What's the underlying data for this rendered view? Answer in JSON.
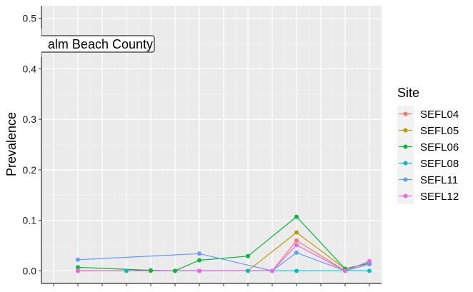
{
  "chart_data": {
    "type": "line",
    "ylabel": "Prevalence",
    "xlabel": "",
    "ylim": [
      -0.025,
      0.525
    ],
    "xlim": [
      0.5,
      14.5
    ],
    "y_ticks": [
      0.0,
      0.1,
      0.2,
      0.3,
      0.4,
      0.5
    ],
    "y_tick_labels": [
      "0.0",
      "0.1",
      "0.2",
      "0.3",
      "0.4",
      "0.5"
    ],
    "x_ticks": [
      1,
      2,
      3,
      4,
      5,
      6,
      7,
      8,
      9,
      10,
      11,
      12,
      13,
      14
    ],
    "x_tick_labels": [],
    "grid": true,
    "annotation": "alm Beach County",
    "legend": {
      "title": "Site",
      "position": "right"
    },
    "series": [
      {
        "name": "SEFL04",
        "color": "#F8766D",
        "points": [
          [
            2,
            0.0
          ],
          [
            5,
            0.0
          ],
          [
            7,
            0.0
          ],
          [
            9,
            0.0
          ],
          [
            10,
            0.0
          ],
          [
            11,
            0.06
          ],
          [
            13,
            0.0
          ],
          [
            14,
            0.019
          ]
        ]
      },
      {
        "name": "SEFL05",
        "color": "#B79F00",
        "points": [
          [
            2,
            0.0
          ],
          [
            5,
            0.0
          ],
          [
            6,
            0.0
          ],
          [
            7,
            0.0
          ],
          [
            9,
            0.0
          ],
          [
            11,
            0.076
          ],
          [
            13,
            0.004
          ],
          [
            14,
            0.015
          ]
        ]
      },
      {
        "name": "SEFL06",
        "color": "#00BA38",
        "points": [
          [
            2,
            0.007
          ],
          [
            5,
            0.001
          ],
          [
            6,
            0.0
          ],
          [
            7,
            0.021
          ],
          [
            9,
            0.029
          ],
          [
            11,
            0.107
          ],
          [
            13,
            0.004
          ],
          [
            14,
            0.015
          ]
        ]
      },
      {
        "name": "SEFL08",
        "color": "#00BFC4",
        "points": [
          [
            4,
            0.0
          ],
          [
            7,
            0.0
          ],
          [
            9,
            0.0
          ],
          [
            11,
            0.0
          ],
          [
            13,
            0.0
          ],
          [
            14,
            0.0
          ]
        ]
      },
      {
        "name": "SEFL11",
        "color": "#619CFF",
        "points": [
          [
            2,
            0.022
          ],
          [
            7,
            0.034
          ],
          [
            10,
            0.0
          ],
          [
            11,
            0.036
          ],
          [
            13,
            0.0
          ],
          [
            14,
            0.013
          ]
        ]
      },
      {
        "name": "SEFL12",
        "color": "#F564E3",
        "points": [
          [
            2,
            0.0
          ],
          [
            7,
            0.0
          ],
          [
            10,
            0.0
          ],
          [
            11,
            0.051
          ],
          [
            13,
            0.0
          ],
          [
            14,
            0.019
          ]
        ]
      }
    ]
  }
}
